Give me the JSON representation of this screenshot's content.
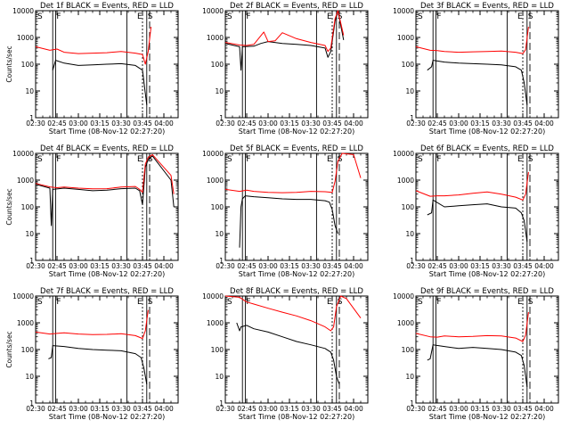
{
  "series_colors": {
    "events": "#000000",
    "lld": "#ff0000"
  },
  "chart_data": [
    {
      "type": "line",
      "title": "Det 1f BLACK = Events, RED = LLD",
      "xlabel": "Start Time (08-Nov-12 02:27:20)",
      "ylabel": "Counts/sec",
      "yscale": "log",
      "ylim": [
        1,
        10000
      ],
      "xlim": [
        "02:30",
        "04:10"
      ],
      "x_ticks": [
        "02:30",
        "02:45",
        "03:00",
        "03:15",
        "03:30",
        "03:45",
        "04:00"
      ],
      "y_ticks": [
        "1",
        "10",
        "100",
        "1000",
        "10000"
      ],
      "markers": [
        "S",
        "F",
        "E",
        "S"
      ],
      "series": [
        {
          "x": [
            "02:42",
            "02:44",
            "02:50",
            "03:00",
            "03:10",
            "03:20",
            "03:30",
            "03:40",
            "03:45",
            "03:47",
            "03:48"
          ],
          "values": [
            60,
            140,
            110,
            90,
            95,
            100,
            105,
            90,
            60,
            8,
            3
          ]
        },
        {
          "x": [
            "02:30",
            "02:40",
            "02:45",
            "02:50",
            "03:00",
            "03:10",
            "03:20",
            "03:30",
            "03:40",
            "03:45",
            "03:47",
            "03:49",
            "03:51"
          ],
          "values": [
            450,
            330,
            370,
            280,
            250,
            260,
            270,
            300,
            260,
            230,
            100,
            300,
            2500
          ]
        }
      ]
    },
    {
      "type": "line",
      "title": "Det 2f BLACK = Events, RED = LLD",
      "xlabel": "Start Time (08-Nov-12 02:27:20)",
      "ylabel": "",
      "yscale": "log",
      "ylim": [
        1,
        10000
      ],
      "xlim": [
        "02:30",
        "04:10"
      ],
      "x_ticks": [
        "02:30",
        "02:45",
        "03:00",
        "03:15",
        "03:30",
        "03:45",
        "04:00"
      ],
      "y_ticks": [
        "1",
        "10",
        "100",
        "1000",
        "10000"
      ],
      "markers": [
        "S",
        "F",
        "E",
        "S"
      ],
      "series": [
        {
          "x": [
            "02:30",
            "02:40",
            "02:41",
            "02:42",
            "02:50",
            "02:55",
            "03:00",
            "03:10",
            "03:20",
            "03:30",
            "03:40",
            "03:42",
            "03:44",
            "03:47",
            "03:49",
            "03:53"
          ],
          "values": [
            600,
            450,
            60,
            450,
            470,
            600,
            700,
            600,
            550,
            500,
            400,
            180,
            300,
            4000,
            10000,
            800
          ]
        },
        {
          "x": [
            "02:30",
            "02:40",
            "02:45",
            "02:50",
            "02:57",
            "03:00",
            "03:05",
            "03:10",
            "03:20",
            "03:30",
            "03:40",
            "03:42",
            "03:44",
            "03:47",
            "03:49",
            "03:53"
          ],
          "values": [
            650,
            520,
            500,
            550,
            1600,
            700,
            750,
            1500,
            900,
            650,
            500,
            300,
            400,
            5000,
            10000,
            1200
          ]
        }
      ]
    },
    {
      "type": "line",
      "title": "Det 3f BLACK = Events, RED = LLD",
      "xlabel": "Start Time (08-Nov-12 02:27:20)",
      "ylabel": "",
      "yscale": "log",
      "ylim": [
        1,
        10000
      ],
      "xlim": [
        "02:30",
        "04:10"
      ],
      "x_ticks": [
        "02:30",
        "02:45",
        "03:00",
        "03:15",
        "03:30",
        "03:45",
        "04:00"
      ],
      "y_ticks": [
        "1",
        "10",
        "100",
        "1000",
        "10000"
      ],
      "markers": [
        "S",
        "F",
        "E",
        "S"
      ],
      "series": [
        {
          "x": [
            "02:38",
            "02:41",
            "02:42",
            "02:50",
            "03:00",
            "03:10",
            "03:20",
            "03:30",
            "03:40",
            "03:44",
            "03:46",
            "03:48"
          ],
          "values": [
            60,
            80,
            140,
            120,
            110,
            105,
            100,
            95,
            80,
            60,
            20,
            3
          ]
        },
        {
          "x": [
            "02:30",
            "02:40",
            "02:45",
            "02:50",
            "03:00",
            "03:10",
            "03:20",
            "03:30",
            "03:40",
            "03:45",
            "03:47",
            "03:49"
          ],
          "values": [
            450,
            330,
            320,
            300,
            280,
            290,
            300,
            310,
            280,
            250,
            350,
            2500
          ]
        }
      ]
    },
    {
      "type": "line",
      "title": "Det 4f BLACK = Events, RED = LLD",
      "xlabel": "Start Time (08-Nov-12 02:27:20)",
      "ylabel": "Counts/sec",
      "yscale": "log",
      "ylim": [
        1,
        10000
      ],
      "xlim": [
        "02:30",
        "04:10"
      ],
      "x_ticks": [
        "02:30",
        "02:45",
        "03:00",
        "03:15",
        "03:30",
        "03:45",
        "04:00"
      ],
      "y_ticks": [
        "1",
        "10",
        "100",
        "1000",
        "10000"
      ],
      "markers": [
        "S",
        "F",
        "E",
        "S"
      ],
      "series": [
        {
          "x": [
            "02:30",
            "02:40",
            "02:41",
            "02:42",
            "02:50",
            "03:00",
            "03:10",
            "03:20",
            "03:30",
            "03:40",
            "03:43",
            "03:45",
            "03:46",
            "03:47",
            "03:49",
            "03:52",
            "04:05",
            "04:07"
          ],
          "values": [
            700,
            500,
            20,
            450,
            500,
            450,
            400,
            420,
            480,
            500,
            400,
            120,
            600,
            3000,
            6000,
            8000,
            1000,
            100
          ]
        },
        {
          "x": [
            "02:30",
            "02:40",
            "02:45",
            "02:50",
            "03:00",
            "03:10",
            "03:20",
            "03:30",
            "03:40",
            "03:43",
            "03:45",
            "03:47",
            "03:49",
            "03:52",
            "04:05",
            "04:07"
          ],
          "values": [
            750,
            560,
            520,
            550,
            500,
            470,
            480,
            550,
            580,
            450,
            350,
            4000,
            7000,
            9000,
            1500,
            300
          ]
        }
      ]
    },
    {
      "type": "line",
      "title": "Det 5f BLACK = Events, RED = LLD",
      "xlabel": "Start Time (08-Nov-12 02:27:20)",
      "ylabel": "",
      "yscale": "log",
      "ylim": [
        1,
        10000
      ],
      "xlim": [
        "02:30",
        "04:10"
      ],
      "x_ticks": [
        "02:30",
        "02:45",
        "03:00",
        "03:15",
        "03:30",
        "03:45",
        "04:00"
      ],
      "y_ticks": [
        "1",
        "10",
        "100",
        "1000",
        "10000"
      ],
      "markers": [
        "S",
        "F",
        "E",
        "S"
      ],
      "series": [
        {
          "x": [
            "02:40",
            "02:41",
            "02:42",
            "02:44",
            "02:50",
            "03:00",
            "03:10",
            "03:20",
            "03:30",
            "03:40",
            "03:43",
            "03:45",
            "03:47",
            "03:49"
          ],
          "values": [
            3,
            100,
            200,
            260,
            240,
            220,
            200,
            190,
            190,
            170,
            150,
            80,
            20,
            10
          ]
        },
        {
          "x": [
            "02:30",
            "02:40",
            "02:45",
            "02:50",
            "03:00",
            "03:10",
            "03:20",
            "03:30",
            "03:40",
            "03:45",
            "03:47",
            "03:49",
            "03:52",
            "04:00",
            "04:05"
          ],
          "values": [
            450,
            380,
            420,
            380,
            350,
            340,
            350,
            380,
            370,
            350,
            900,
            5000,
            10000,
            9000,
            1200
          ]
        }
      ]
    },
    {
      "type": "line",
      "title": "Det 6f BLACK = Events, RED = LLD",
      "xlabel": "Start Time (08-Nov-12 02:27:20)",
      "ylabel": "",
      "yscale": "log",
      "ylim": [
        1,
        10000
      ],
      "xlim": [
        "02:30",
        "04:10"
      ],
      "x_ticks": [
        "02:30",
        "02:45",
        "03:00",
        "03:15",
        "03:30",
        "03:45",
        "04:00"
      ],
      "y_ticks": [
        "1",
        "10",
        "100",
        "1000",
        "10000"
      ],
      "markers": [
        "S",
        "F",
        "E",
        "S"
      ],
      "series": [
        {
          "x": [
            "02:38",
            "02:41",
            "02:42",
            "02:50",
            "03:00",
            "03:10",
            "03:20",
            "03:30",
            "03:40",
            "03:44",
            "03:46",
            "03:48"
          ],
          "values": [
            50,
            60,
            180,
            100,
            110,
            120,
            130,
            100,
            90,
            60,
            30,
            5
          ]
        },
        {
          "x": [
            "02:30",
            "02:40",
            "02:45",
            "02:50",
            "03:00",
            "03:10",
            "03:20",
            "03:30",
            "03:40",
            "03:45",
            "03:47",
            "03:49"
          ],
          "values": [
            400,
            250,
            260,
            260,
            280,
            320,
            360,
            300,
            230,
            180,
            300,
            2000
          ]
        }
      ]
    },
    {
      "type": "line",
      "title": "Det 7f BLACK = Events, RED = LLD",
      "xlabel": "Start Time (08-Nov-12 02:27:20)",
      "ylabel": "Counts/sec",
      "yscale": "log",
      "ylim": [
        1,
        10000
      ],
      "xlim": [
        "02:30",
        "04:10"
      ],
      "x_ticks": [
        "02:30",
        "02:45",
        "03:00",
        "03:15",
        "03:30",
        "03:45",
        "04:00"
      ],
      "y_ticks": [
        "1",
        "10",
        "100",
        "1000",
        "10000"
      ],
      "markers": [
        "S",
        "F",
        "E",
        "S"
      ],
      "series": [
        {
          "x": [
            "02:39",
            "02:41",
            "02:42",
            "02:50",
            "03:00",
            "03:10",
            "03:20",
            "03:30",
            "03:40",
            "03:44",
            "03:46",
            "03:48"
          ],
          "values": [
            45,
            50,
            140,
            130,
            110,
            100,
            95,
            90,
            70,
            50,
            20,
            5
          ]
        },
        {
          "x": [
            "02:30",
            "02:40",
            "02:45",
            "02:50",
            "03:00",
            "03:10",
            "03:20",
            "03:30",
            "03:40",
            "03:45",
            "03:47",
            "03:49"
          ],
          "values": [
            450,
            380,
            400,
            420,
            380,
            360,
            370,
            390,
            330,
            260,
            500,
            3000
          ]
        }
      ]
    },
    {
      "type": "line",
      "title": "Det 8f BLACK = Events, RED = LLD",
      "xlabel": "Start Time (08-Nov-12 02:27:20)",
      "ylabel": "",
      "yscale": "log",
      "ylim": [
        1,
        10000
      ],
      "xlim": [
        "02:30",
        "04:10"
      ],
      "x_ticks": [
        "02:30",
        "02:45",
        "03:00",
        "03:15",
        "03:30",
        "03:45",
        "04:00"
      ],
      "y_ticks": [
        "1",
        "10",
        "100",
        "1000",
        "10000"
      ],
      "markers": [
        "S",
        "F",
        "E",
        "S"
      ],
      "series": [
        {
          "x": [
            "02:38",
            "02:40",
            "02:41",
            "02:45",
            "02:50",
            "03:00",
            "03:10",
            "03:20",
            "03:30",
            "03:40",
            "03:44",
            "03:46",
            "03:48",
            "03:50"
          ],
          "values": [
            1000,
            500,
            700,
            800,
            600,
            450,
            300,
            200,
            150,
            110,
            80,
            40,
            10,
            5
          ]
        },
        {
          "x": [
            "02:30",
            "02:40",
            "02:45",
            "02:50",
            "03:00",
            "03:10",
            "03:20",
            "03:30",
            "03:40",
            "03:44",
            "03:46",
            "03:48",
            "03:51",
            "03:55",
            "04:05"
          ],
          "values": [
            10000,
            9000,
            6000,
            5000,
            3500,
            2500,
            1800,
            1200,
            700,
            500,
            700,
            4000,
            10000,
            8000,
            1500
          ]
        }
      ]
    },
    {
      "type": "line",
      "title": "Det 9f BLACK = Events, RED = LLD",
      "xlabel": "Start Time (08-Nov-12 02:27:20)",
      "ylabel": "",
      "yscale": "log",
      "ylim": [
        1,
        10000
      ],
      "xlim": [
        "02:30",
        "04:10"
      ],
      "x_ticks": [
        "02:30",
        "02:45",
        "03:00",
        "03:15",
        "03:30",
        "03:45",
        "04:00"
      ],
      "y_ticks": [
        "1",
        "10",
        "100",
        "1000",
        "10000"
      ],
      "markers": [
        "S",
        "F",
        "E",
        "S"
      ],
      "series": [
        {
          "x": [
            "02:38",
            "02:40",
            "02:42",
            "02:50",
            "03:00",
            "03:10",
            "03:20",
            "03:30",
            "03:40",
            "03:44",
            "03:46",
            "03:48"
          ],
          "values": [
            40,
            45,
            150,
            130,
            110,
            120,
            110,
            100,
            80,
            60,
            25,
            4
          ]
        },
        {
          "x": [
            "02:30",
            "02:40",
            "02:45",
            "02:50",
            "03:00",
            "03:10",
            "03:20",
            "03:30",
            "03:40",
            "03:45",
            "03:47",
            "03:49"
          ],
          "values": [
            400,
            300,
            290,
            320,
            300,
            310,
            330,
            320,
            270,
            200,
            350,
            2500
          ]
        }
      ]
    }
  ]
}
